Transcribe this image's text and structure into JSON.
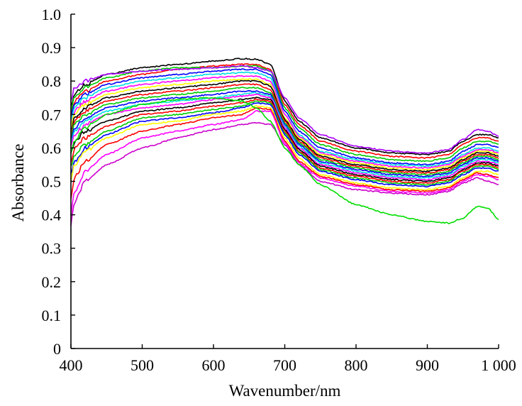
{
  "chart_data": {
    "type": "line",
    "title": "",
    "xlabel": "Wavenumber/nm",
    "ylabel": "Absorbance",
    "xlim": [
      400,
      1000
    ],
    "ylim": [
      0,
      1.0
    ],
    "grid": false,
    "legend": "none",
    "x_ticks": [
      {
        "value": 400,
        "label": "400"
      },
      {
        "value": 500,
        "label": "500"
      },
      {
        "value": 600,
        "label": "600"
      },
      {
        "value": 700,
        "label": "700"
      },
      {
        "value": 800,
        "label": "800"
      },
      {
        "value": 900,
        "label": "900"
      },
      {
        "value": 1000,
        "label": "1 000"
      }
    ],
    "y_ticks": [
      {
        "value": 0,
        "label": "0"
      },
      {
        "value": 0.1,
        "label": "0.1"
      },
      {
        "value": 0.2,
        "label": "0.2"
      },
      {
        "value": 0.3,
        "label": "0.3"
      },
      {
        "value": 0.4,
        "label": "0.4"
      },
      {
        "value": 0.5,
        "label": "0.5"
      },
      {
        "value": 0.6,
        "label": "0.6"
      },
      {
        "value": 0.7,
        "label": "0.7"
      },
      {
        "value": 0.8,
        "label": "0.8"
      },
      {
        "value": 0.9,
        "label": "0.9"
      },
      {
        "value": 1.0,
        "label": "1.0"
      }
    ],
    "x": [
      400,
      405,
      420,
      450,
      500,
      550,
      600,
      640,
      660,
      680,
      700,
      720,
      750,
      800,
      850,
      900,
      930,
      950,
      970,
      985,
      1000
    ],
    "series": [
      {
        "color": "#000000",
        "values": [
          0.72,
          0.76,
          0.79,
          0.82,
          0.84,
          0.85,
          0.86,
          0.867,
          0.865,
          0.85,
          0.74,
          0.68,
          0.63,
          0.6,
          0.585,
          0.58,
          0.59,
          0.62,
          0.64,
          0.64,
          0.63
        ]
      },
      {
        "color": "#ff0000",
        "values": [
          0.7,
          0.74,
          0.77,
          0.8,
          0.82,
          0.835,
          0.845,
          0.85,
          0.85,
          0.835,
          0.73,
          0.67,
          0.62,
          0.59,
          0.575,
          0.57,
          0.58,
          0.61,
          0.63,
          0.63,
          0.62
        ]
      },
      {
        "color": "#00cc00",
        "values": [
          0.71,
          0.75,
          0.78,
          0.81,
          0.83,
          0.84,
          0.84,
          0.845,
          0.845,
          0.83,
          0.72,
          0.66,
          0.61,
          0.58,
          0.565,
          0.56,
          0.57,
          0.6,
          0.62,
          0.62,
          0.61
        ]
      },
      {
        "color": "#0000ff",
        "values": [
          0.69,
          0.73,
          0.76,
          0.79,
          0.81,
          0.82,
          0.83,
          0.835,
          0.835,
          0.82,
          0.71,
          0.65,
          0.6,
          0.57,
          0.555,
          0.55,
          0.56,
          0.59,
          0.61,
          0.61,
          0.6
        ]
      },
      {
        "color": "#00e0e0",
        "values": [
          0.68,
          0.72,
          0.75,
          0.78,
          0.8,
          0.81,
          0.82,
          0.825,
          0.825,
          0.81,
          0.7,
          0.64,
          0.59,
          0.565,
          0.55,
          0.545,
          0.555,
          0.58,
          0.6,
          0.6,
          0.59
        ]
      },
      {
        "color": "#ff00ff",
        "values": [
          0.67,
          0.71,
          0.74,
          0.77,
          0.79,
          0.8,
          0.81,
          0.815,
          0.815,
          0.8,
          0.7,
          0.635,
          0.585,
          0.56,
          0.545,
          0.54,
          0.55,
          0.575,
          0.595,
          0.595,
          0.585
        ]
      },
      {
        "color": "#ffff00",
        "values": [
          0.66,
          0.7,
          0.73,
          0.76,
          0.78,
          0.79,
          0.8,
          0.805,
          0.805,
          0.79,
          0.69,
          0.63,
          0.58,
          0.555,
          0.54,
          0.535,
          0.545,
          0.57,
          0.59,
          0.59,
          0.58
        ]
      },
      {
        "color": "#000000",
        "values": [
          0.65,
          0.69,
          0.72,
          0.75,
          0.77,
          0.78,
          0.79,
          0.8,
          0.8,
          0.785,
          0.685,
          0.625,
          0.575,
          0.55,
          0.535,
          0.53,
          0.54,
          0.565,
          0.585,
          0.585,
          0.575
        ]
      },
      {
        "color": "#ff0000",
        "values": [
          0.64,
          0.68,
          0.71,
          0.74,
          0.76,
          0.77,
          0.78,
          0.79,
          0.79,
          0.775,
          0.68,
          0.62,
          0.57,
          0.545,
          0.53,
          0.525,
          0.535,
          0.56,
          0.58,
          0.58,
          0.57
        ]
      },
      {
        "color": "#00cc00",
        "values": [
          0.63,
          0.67,
          0.7,
          0.73,
          0.75,
          0.76,
          0.77,
          0.78,
          0.78,
          0.765,
          0.675,
          0.615,
          0.565,
          0.54,
          0.525,
          0.52,
          0.53,
          0.555,
          0.575,
          0.575,
          0.565
        ]
      },
      {
        "color": "#0000ff",
        "values": [
          0.62,
          0.66,
          0.69,
          0.72,
          0.74,
          0.75,
          0.76,
          0.77,
          0.77,
          0.76,
          0.67,
          0.61,
          0.56,
          0.535,
          0.52,
          0.515,
          0.525,
          0.55,
          0.57,
          0.57,
          0.56
        ]
      },
      {
        "color": "#00e0e0",
        "values": [
          0.61,
          0.65,
          0.68,
          0.71,
          0.73,
          0.74,
          0.75,
          0.76,
          0.765,
          0.755,
          0.665,
          0.605,
          0.555,
          0.53,
          0.515,
          0.51,
          0.52,
          0.545,
          0.565,
          0.565,
          0.555
        ]
      },
      {
        "color": "#ff00ff",
        "values": [
          0.6,
          0.64,
          0.67,
          0.7,
          0.72,
          0.73,
          0.745,
          0.755,
          0.76,
          0.75,
          0.66,
          0.6,
          0.55,
          0.525,
          0.51,
          0.505,
          0.515,
          0.54,
          0.56,
          0.56,
          0.55
        ]
      },
      {
        "color": "#000000",
        "values": [
          0.58,
          0.62,
          0.65,
          0.68,
          0.71,
          0.72,
          0.735,
          0.745,
          0.75,
          0.745,
          0.655,
          0.595,
          0.545,
          0.52,
          0.505,
          0.5,
          0.51,
          0.535,
          0.555,
          0.555,
          0.545
        ]
      },
      {
        "color": "#ff0000",
        "values": [
          0.56,
          0.6,
          0.63,
          0.665,
          0.7,
          0.71,
          0.725,
          0.735,
          0.745,
          0.74,
          0.65,
          0.59,
          0.54,
          0.515,
          0.5,
          0.495,
          0.505,
          0.53,
          0.55,
          0.55,
          0.54
        ]
      },
      {
        "color": "#00cc00",
        "values": [
          0.54,
          0.58,
          0.61,
          0.65,
          0.69,
          0.7,
          0.715,
          0.725,
          0.74,
          0.735,
          0.645,
          0.585,
          0.535,
          0.51,
          0.495,
          0.49,
          0.5,
          0.525,
          0.545,
          0.545,
          0.535
        ]
      },
      {
        "color": "#0000ff",
        "values": [
          0.52,
          0.56,
          0.6,
          0.64,
          0.68,
          0.69,
          0.705,
          0.72,
          0.735,
          0.73,
          0.64,
          0.58,
          0.53,
          0.505,
          0.49,
          0.485,
          0.495,
          0.52,
          0.54,
          0.54,
          0.53
        ]
      },
      {
        "color": "#ffff00",
        "values": [
          0.5,
          0.55,
          0.59,
          0.63,
          0.67,
          0.68,
          0.7,
          0.71,
          0.725,
          0.72,
          0.63,
          0.57,
          0.52,
          0.495,
          0.48,
          0.475,
          0.485,
          0.51,
          0.53,
          0.53,
          0.52
        ]
      },
      {
        "color": "#ff0000",
        "values": [
          0.45,
          0.51,
          0.56,
          0.61,
          0.65,
          0.67,
          0.69,
          0.7,
          0.72,
          0.715,
          0.62,
          0.56,
          0.515,
          0.49,
          0.475,
          0.47,
          0.48,
          0.505,
          0.525,
          0.52,
          0.51
        ]
      },
      {
        "color": "#ff00ff",
        "values": [
          0.4,
          0.47,
          0.53,
          0.58,
          0.63,
          0.65,
          0.67,
          0.685,
          0.71,
          0.71,
          0.615,
          0.555,
          0.51,
          0.485,
          0.47,
          0.465,
          0.475,
          0.5,
          0.52,
          0.515,
          0.505
        ]
      },
      {
        "color": "#cc00cc",
        "values": [
          0.37,
          0.44,
          0.5,
          0.55,
          0.6,
          0.63,
          0.655,
          0.67,
          0.675,
          0.67,
          0.61,
          0.55,
          0.5,
          0.475,
          0.465,
          0.46,
          0.47,
          0.495,
          0.51,
          0.5,
          0.49
        ]
      },
      {
        "color": "#00dd00",
        "values": [
          0.58,
          0.62,
          0.66,
          0.7,
          0.73,
          0.745,
          0.75,
          0.74,
          0.72,
          0.68,
          0.6,
          0.55,
          0.49,
          0.43,
          0.4,
          0.38,
          0.375,
          0.39,
          0.425,
          0.42,
          0.385
        ]
      },
      {
        "color": "#aa00ff",
        "values": [
          0.74,
          0.78,
          0.8,
          0.82,
          0.83,
          0.835,
          0.84,
          0.845,
          0.84,
          0.83,
          0.75,
          0.69,
          0.64,
          0.605,
          0.59,
          0.585,
          0.595,
          0.625,
          0.655,
          0.65,
          0.635
        ]
      }
    ]
  }
}
